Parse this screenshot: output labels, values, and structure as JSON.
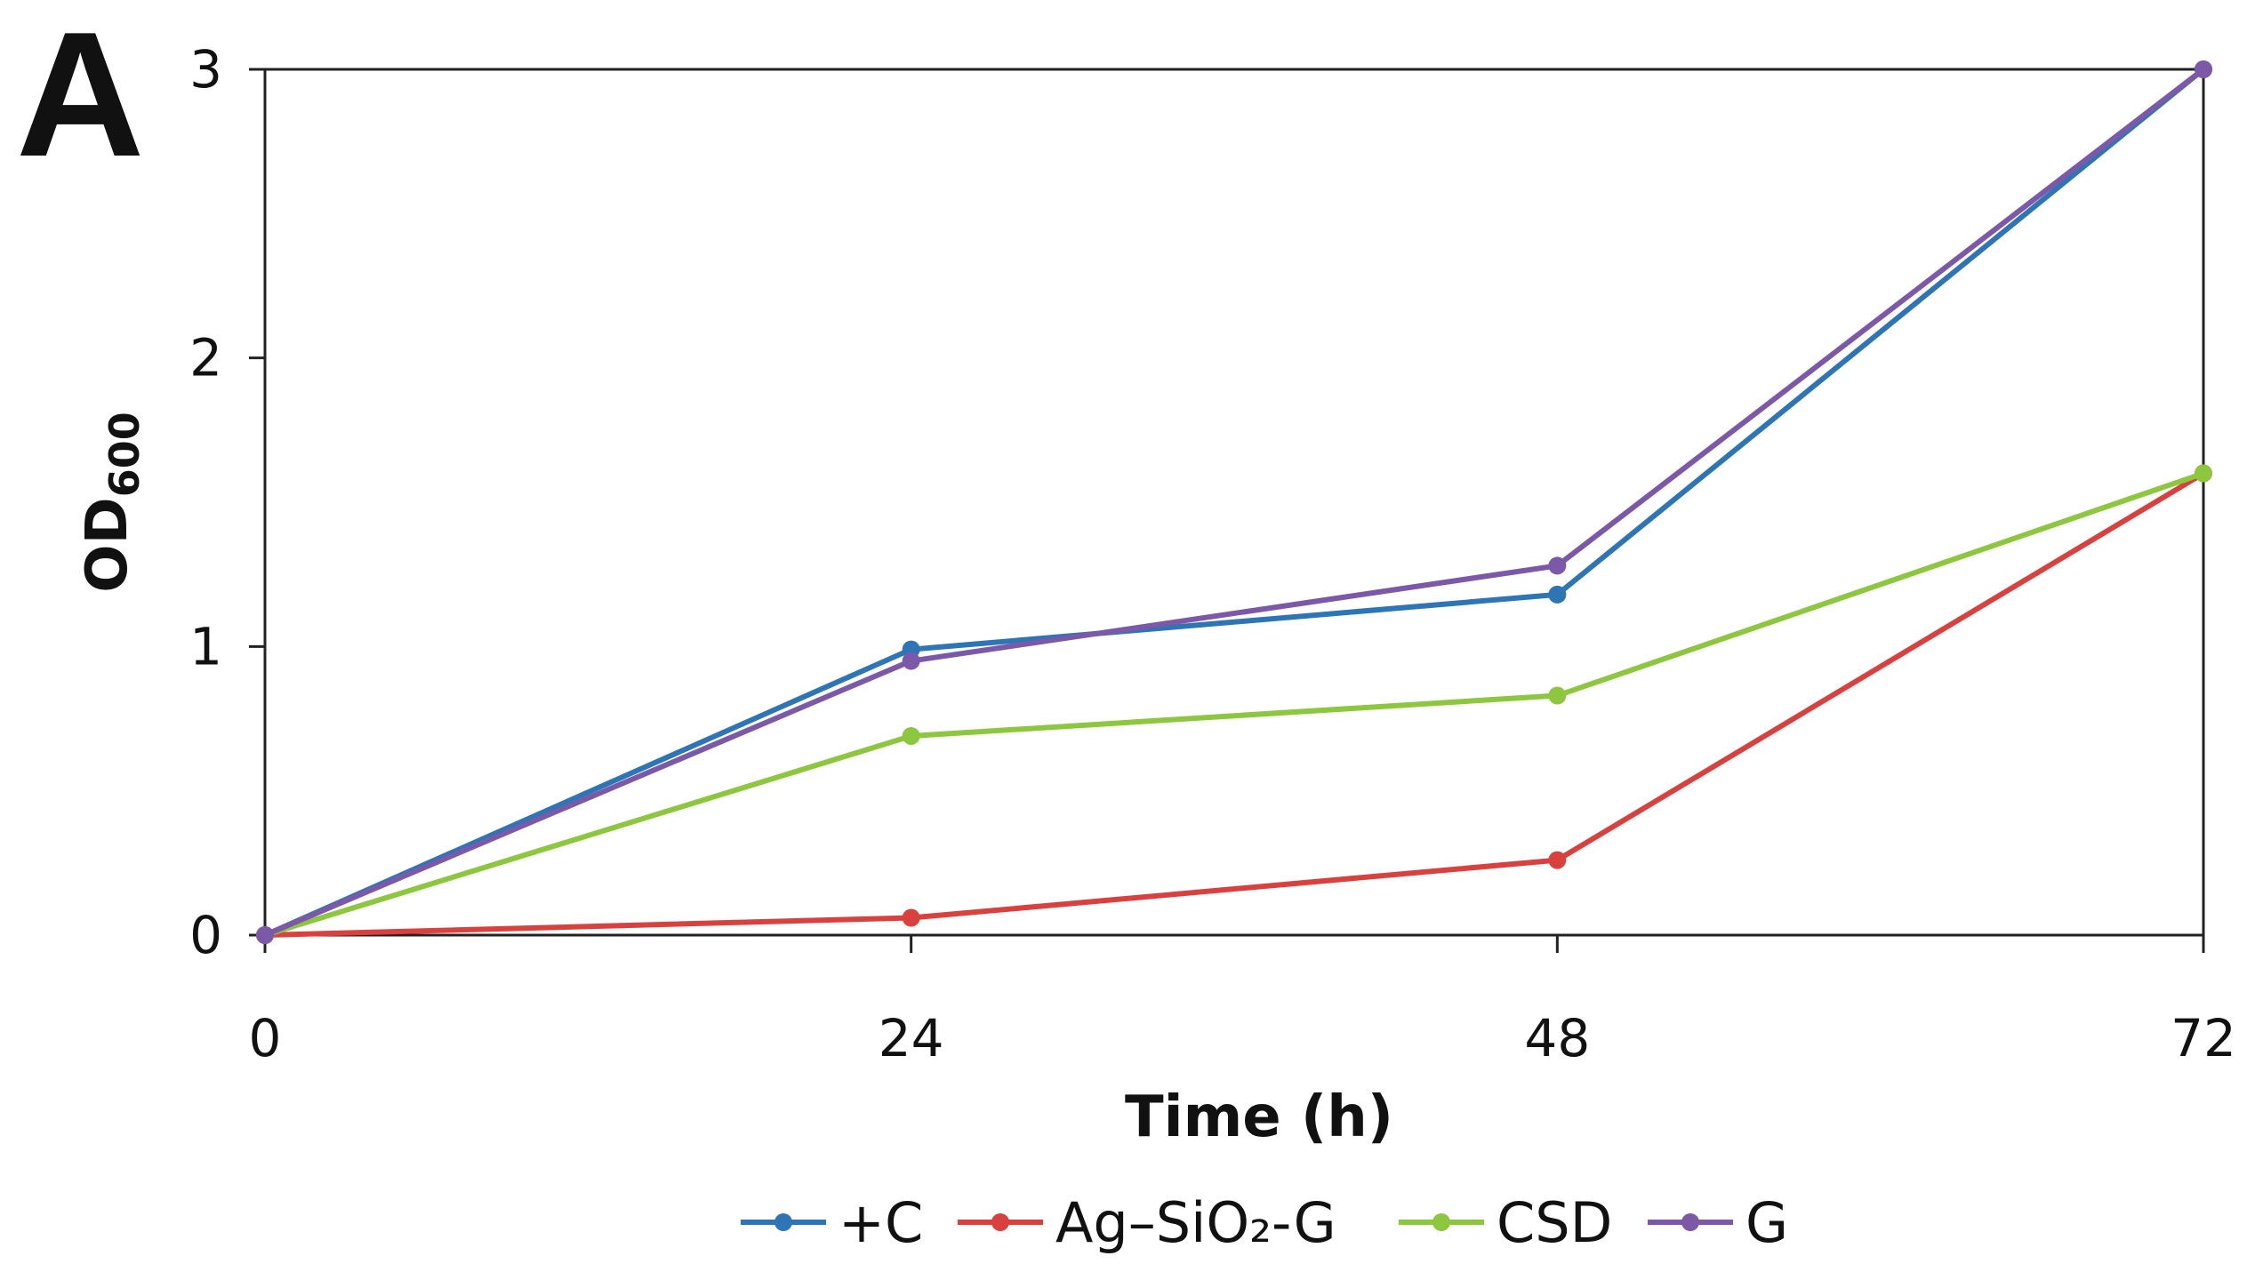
{
  "panel_label": "A",
  "chart_data": {
    "type": "line",
    "title": "",
    "xlabel": "Time (h)",
    "ylabel_main": "OD",
    "ylabel_sub": "600",
    "x": [
      0,
      24,
      48,
      72
    ],
    "x_ticks": [
      "0",
      "24",
      "48",
      "72"
    ],
    "y_ticks": [
      "0",
      "1",
      "2",
      "3"
    ],
    "xlim": [
      0,
      72
    ],
    "ylim": [
      0,
      3
    ],
    "grid": false,
    "legend_position": "bottom",
    "series": [
      {
        "name": "+C",
        "color": "#2e75b6",
        "values": [
          0,
          0.99,
          1.18,
          3.0
        ]
      },
      {
        "name": "Ag–SiO₂-G",
        "color": "#d9413f",
        "values": [
          0,
          0.06,
          0.26,
          1.6
        ]
      },
      {
        "name": "CSD",
        "color": "#8dc63f",
        "values": [
          0,
          0.69,
          0.83,
          1.6
        ]
      },
      {
        "name": "G",
        "color": "#7b59a8",
        "values": [
          0,
          0.95,
          1.28,
          3.0
        ]
      }
    ]
  }
}
